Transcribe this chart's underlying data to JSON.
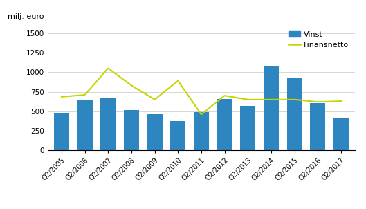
{
  "categories": [
    "Q2/2005",
    "Q2/2006",
    "Q2/2007",
    "Q2/2008",
    "Q2/2009",
    "Q2/2010",
    "Q2/2011",
    "Q2/2012",
    "Q2/2013",
    "Q2/2014",
    "Q2/2015",
    "Q2/2016",
    "Q2/2017"
  ],
  "vinst": [
    475,
    650,
    670,
    515,
    465,
    375,
    490,
    655,
    565,
    1075,
    935,
    600,
    420
  ],
  "finansnetto": [
    685,
    710,
    1050,
    830,
    650,
    890,
    460,
    700,
    650,
    650,
    650,
    620,
    630
  ],
  "bar_color": "#2e86c1",
  "line_color": "#c8d400",
  "ylabel": "milj. euro",
  "ylim": [
    0,
    1600
  ],
  "yticks": [
    0,
    250,
    500,
    750,
    1000,
    1250,
    1500
  ],
  "legend_vinst": "Vinst",
  "legend_finansnetto": "Finansnetto",
  "background_color": "#ffffff",
  "grid_color": "#d0d0d0"
}
